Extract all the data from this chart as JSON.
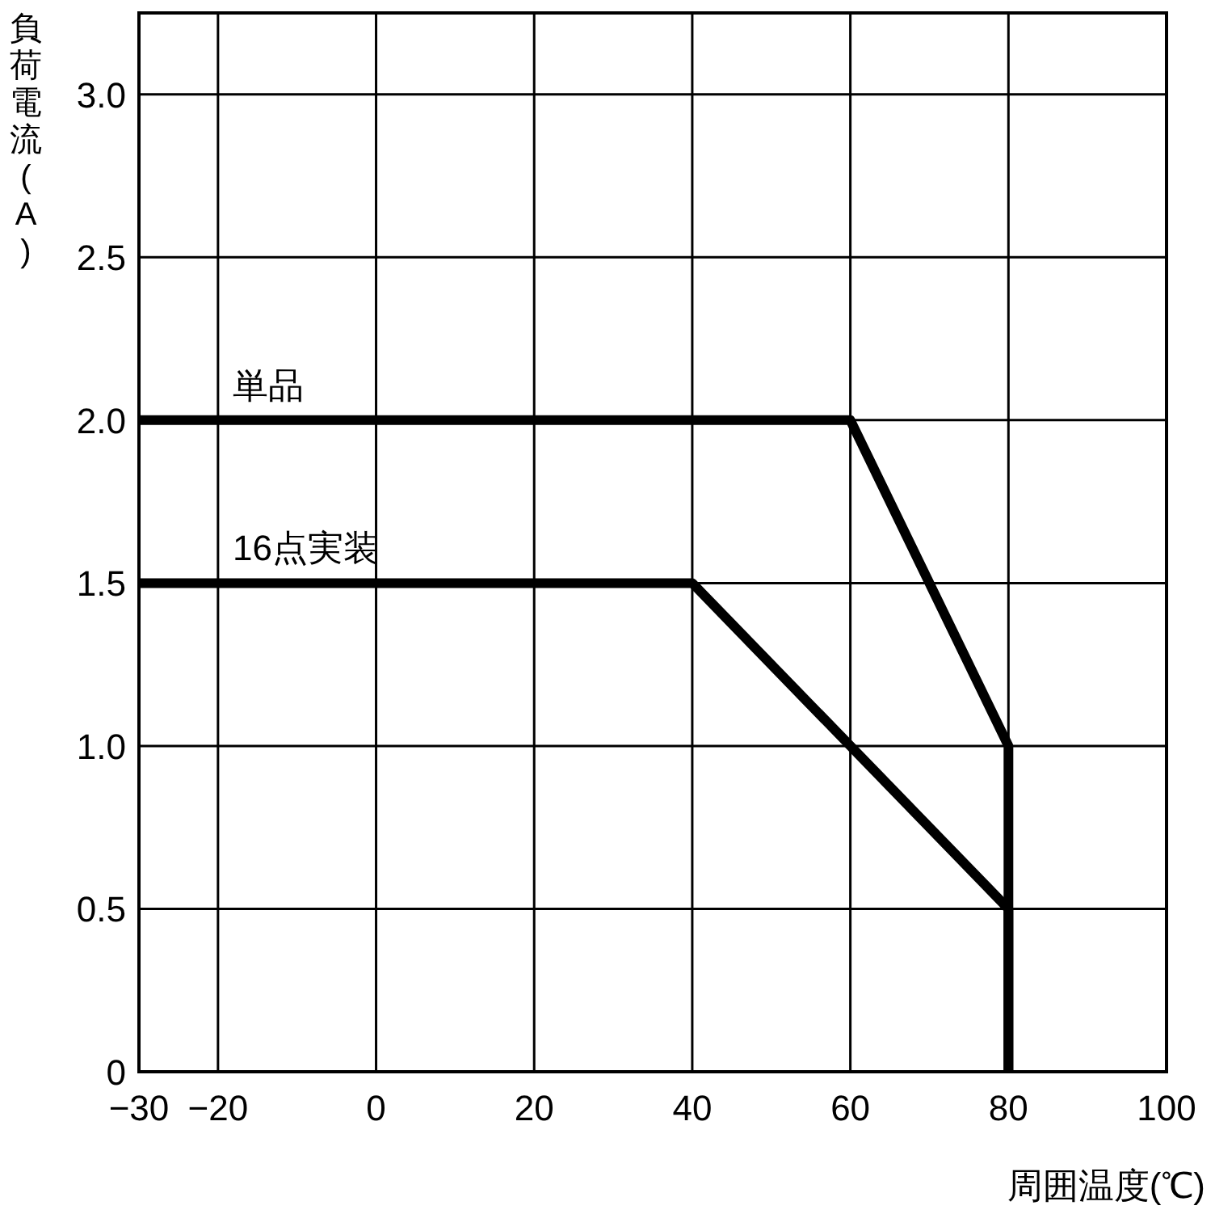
{
  "chart_data": {
    "type": "line",
    "xlabel": "周囲温度(℃)",
    "ylabel": "負荷電流(A)",
    "xlim": [
      -30,
      100
    ],
    "xticks": [
      -30,
      -20,
      0,
      20,
      40,
      60,
      80,
      100
    ],
    "ylim": [
      0,
      3.25
    ],
    "yticks": [
      {
        "value": 0,
        "label": "0"
      },
      0.5,
      {
        "value": 1,
        "label": "1.0"
      },
      1.5,
      {
        "value": 2,
        "label": "2.0"
      },
      2.5,
      {
        "value": 3,
        "label": "3.0"
      }
    ],
    "grid": true,
    "legend": false,
    "marker": "none",
    "line_style": "solid",
    "series": [
      {
        "name": "単品",
        "color": "#000000",
        "x": [
          -30,
          60,
          80,
          80
        ],
        "values": [
          2,
          2,
          1,
          0
        ]
      },
      {
        "name": "16点実装",
        "color": "#000000",
        "x": [
          -30,
          40,
          80,
          80
        ],
        "values": [
          1.5,
          1.5,
          0.5,
          0
        ]
      }
    ]
  }
}
